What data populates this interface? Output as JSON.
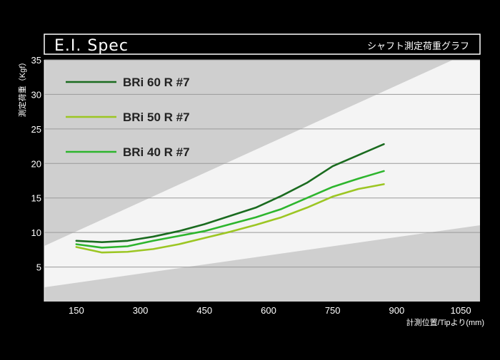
{
  "header": {
    "title": "E.I. Spec",
    "subtitle": "シャフト測定荷重グラフ"
  },
  "colors": {
    "background": "#000000",
    "plot_bg": "#f4f4f4",
    "band_dark": "#cfcfcf",
    "text": "#ffffff",
    "legend_text": "#222222"
  },
  "chart_data": {
    "type": "line",
    "title": "",
    "xlabel": "計測位置/Tipより(mm)",
    "ylabel": "測定荷重（Kgf）",
    "xlim": [
      75,
      1095
    ],
    "ylim": [
      0,
      35
    ],
    "x_ticks": [
      150,
      300,
      450,
      600,
      750,
      900,
      1050
    ],
    "y_ticks": [
      5,
      10,
      15,
      20,
      25,
      30,
      35
    ],
    "grid": true,
    "legend_position": "top-left",
    "series": [
      {
        "name": "BRi 60 R #7",
        "color": "#1a6b1f",
        "x": [
          150,
          210,
          270,
          330,
          390,
          450,
          510,
          570,
          630,
          690,
          750,
          810,
          870
        ],
        "y": [
          8.8,
          8.6,
          8.8,
          9.4,
          10.2,
          11.2,
          12.4,
          13.6,
          15.3,
          17.2,
          19.6,
          21.2,
          22.8
        ]
      },
      {
        "name": "BRi 50 R #7",
        "color": "#9cc623",
        "x": [
          150,
          210,
          270,
          330,
          390,
          450,
          510,
          570,
          630,
          690,
          750,
          810,
          870
        ],
        "y": [
          7.9,
          7.1,
          7.2,
          7.6,
          8.3,
          9.2,
          10.1,
          11.1,
          12.2,
          13.6,
          15.2,
          16.3,
          17.0
        ]
      },
      {
        "name": "BRi 40 R #7",
        "color": "#2db52d",
        "x": [
          150,
          210,
          270,
          330,
          390,
          450,
          510,
          570,
          630,
          690,
          750,
          810,
          870
        ],
        "y": [
          8.3,
          7.8,
          8.0,
          8.8,
          9.5,
          10.2,
          11.2,
          12.2,
          13.4,
          15.0,
          16.6,
          17.8,
          18.9
        ]
      }
    ]
  }
}
